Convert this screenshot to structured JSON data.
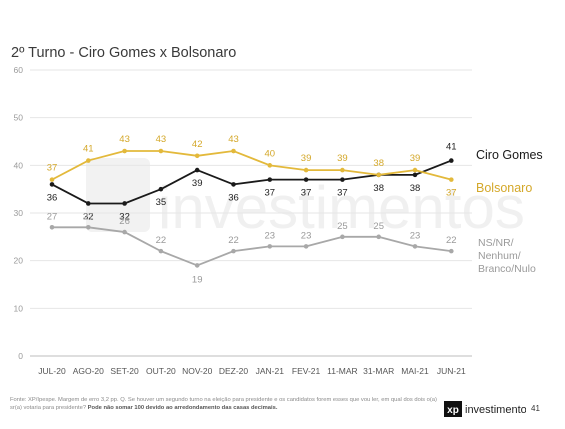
{
  "chart_data": {
    "type": "line",
    "title": "2º Turno - Ciro Gomes x Bolsonaro",
    "categories": [
      "JUL-20",
      "AGO-20",
      "SET-20",
      "OUT-20",
      "NOV-20",
      "DEZ-20",
      "JAN-21",
      "FEV-21",
      "11-MAR",
      "31-MAR",
      "MAI-21",
      "JUN-21"
    ],
    "ylim": [
      0,
      60
    ],
    "yticks": [
      "0",
      "10",
      "20",
      "30",
      "40",
      "50",
      "60"
    ],
    "grid": true,
    "series": [
      {
        "name": "Ciro Gomes",
        "color": "#1a1a1a",
        "values": [
          36,
          32,
          32,
          35,
          39,
          36,
          37,
          37,
          37,
          38,
          38,
          41
        ],
        "labels": [
          "36",
          "32",
          "32",
          "35",
          "39",
          "36",
          "37",
          "37",
          "37",
          "38",
          "38",
          "41"
        ]
      },
      {
        "name": "Bolsonaro",
        "color": "#e3b93b",
        "values": [
          37,
          41,
          43,
          43,
          42,
          43,
          40,
          39,
          39,
          38,
          39,
          37
        ],
        "labels": [
          "37",
          "41",
          "43",
          "43",
          "42",
          "43",
          "40",
          "39",
          "39",
          "38",
          "39",
          "37"
        ]
      },
      {
        "name": "NS/NR/ Nenhum/ Branco/Nulo",
        "legend_lines": [
          "NS/NR/",
          "Nenhum/",
          "Branco/Nulo"
        ],
        "color": "#a8a8a8",
        "values": [
          27,
          27,
          26,
          22,
          19,
          22,
          23,
          23,
          25,
          25,
          23,
          22
        ],
        "labels": [
          "27",
          "27",
          "26",
          "22",
          "19",
          "22",
          "23",
          "23",
          "25",
          "25",
          "23",
          "22"
        ]
      }
    ]
  },
  "footnote": {
    "text": "Fonte: XP/Ipespe. Margem de erro 3,2 pp. Q. Se houver um segundo turno na eleição para presidente e os candidatos forem esses que vou ler, em qual dos dois o(a) sr(a) votaria para presidente?",
    "bold": "Pode não somar 100 devido ao arredondamento das casas decimais."
  },
  "watermark": {
    "brand": "investimentos"
  },
  "brand": {
    "name": "investimentos",
    "mark": "xp"
  },
  "page_number": "41"
}
